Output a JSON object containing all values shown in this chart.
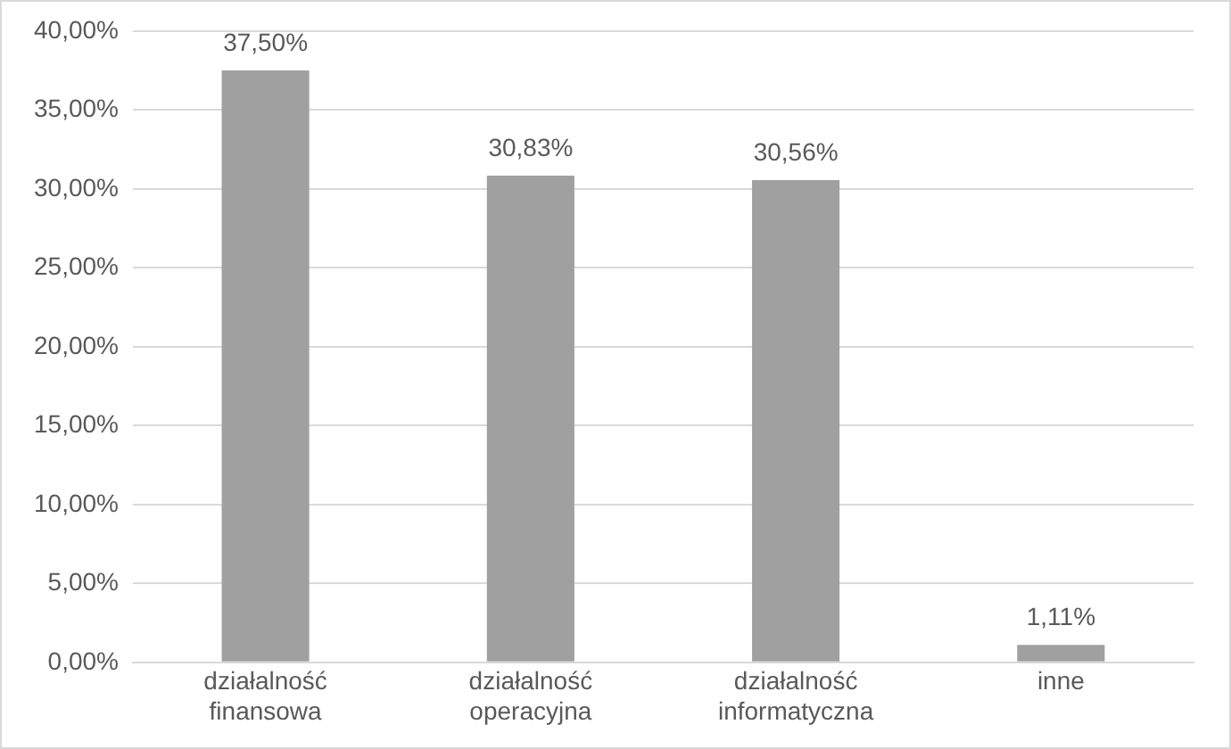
{
  "chart_data": {
    "type": "bar",
    "categories": [
      "działalność finansowa",
      "działalność operacyjna",
      "działalność informatyczna",
      "inne"
    ],
    "values": [
      37.5,
      30.83,
      30.56,
      1.11
    ],
    "value_labels": [
      "37,50%",
      "30,83%",
      "30,56%",
      "1,11%"
    ],
    "color": "#a0a0a0",
    "ylim": [
      0,
      40
    ],
    "yticks": [
      {
        "value": 0,
        "label": "0,00%"
      },
      {
        "value": 5,
        "label": "5,00%"
      },
      {
        "value": 10,
        "label": "10,00%"
      },
      {
        "value": 15,
        "label": "15,00%"
      },
      {
        "value": 20,
        "label": "20,00%"
      },
      {
        "value": 25,
        "label": "25,00%"
      },
      {
        "value": 30,
        "label": "30,00%"
      },
      {
        "value": 35,
        "label": "35,00%"
      },
      {
        "value": 40,
        "label": "40,00%"
      }
    ],
    "grid": "y",
    "legend": false
  }
}
